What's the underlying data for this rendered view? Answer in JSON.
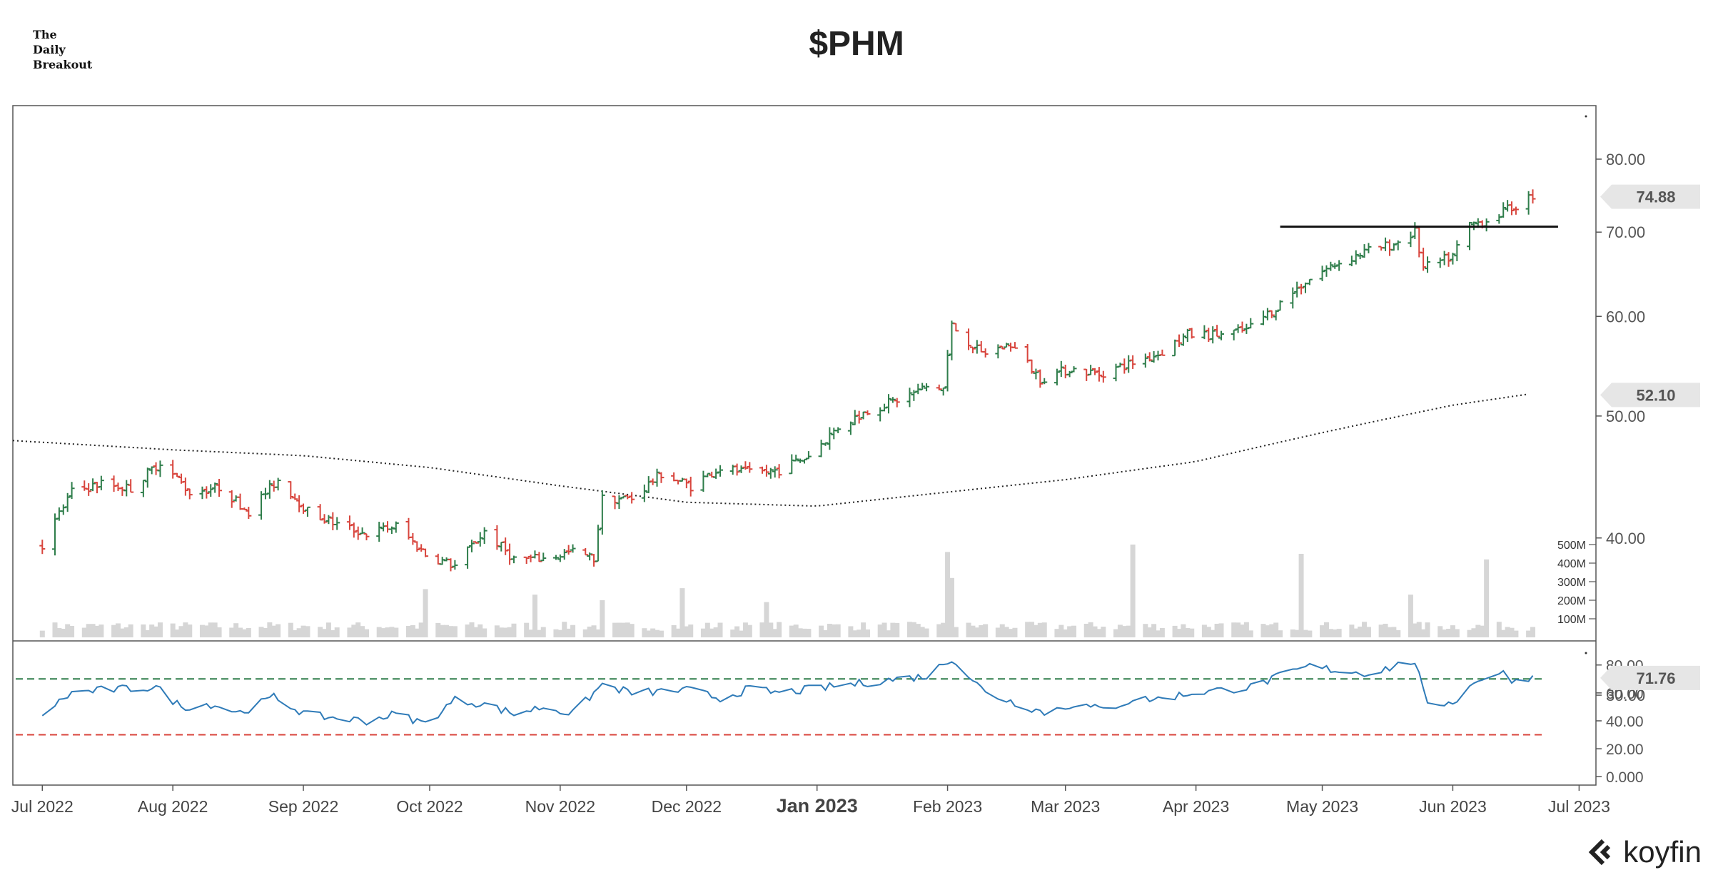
{
  "header": {
    "logo_lines": [
      "The",
      "Daily",
      "Breakout"
    ],
    "title": "$PHM"
  },
  "brand": {
    "name": "koyfin"
  },
  "colors": {
    "up": "#2e7d4a",
    "down": "#d8443c",
    "volume": "#d6d6d6",
    "rsi": "#2f7bb8",
    "rsi_overbought": "#2e7d4a",
    "rsi_oversold": "#d8443c",
    "badge": "#e6e6e6"
  },
  "chart_data": [
    {
      "type": "candlestick",
      "title": "$PHM",
      "x_range": [
        "2022-06-24",
        "2023-07-05"
      ],
      "x_tick_labels": [
        "Jul 2022",
        "Aug 2022",
        "Sep 2022",
        "Oct 2022",
        "Nov 2022",
        "Dec 2022",
        "Jan 2023",
        "Feb 2023",
        "Mar 2023",
        "Apr 2023",
        "May 2023",
        "Jun 2023",
        "Jul 2023"
      ],
      "x_tick_dates": [
        "2022-07-01",
        "2022-08-01",
        "2022-09-01",
        "2022-10-01",
        "2022-11-01",
        "2022-12-01",
        "2023-01-01",
        "2023-02-01",
        "2023-03-01",
        "2023-04-01",
        "2023-05-01",
        "2023-06-01",
        "2023-07-01"
      ],
      "y_scale": "log",
      "y_range": [
        29,
        88
      ],
      "y_tick_labels": [
        "30.00",
        "40.00",
        "50.00",
        "60.00",
        "70.00",
        "80.00"
      ],
      "y_tick_values": [
        30,
        40,
        50,
        60,
        70,
        80
      ],
      "last_price": "74.88",
      "moving_average_label": "52.10",
      "close_keypoints": [
        [
          "2022-07-01",
          39.5
        ],
        [
          "2022-07-08",
          43.5
        ],
        [
          "2022-07-15",
          44.2
        ],
        [
          "2022-07-22",
          43.8
        ],
        [
          "2022-07-29",
          46.0
        ],
        [
          "2022-08-05",
          43.5
        ],
        [
          "2022-08-12",
          43.9
        ],
        [
          "2022-08-19",
          42.0
        ],
        [
          "2022-08-26",
          44.5
        ],
        [
          "2022-09-02",
          42.0
        ],
        [
          "2022-09-09",
          41.0
        ],
        [
          "2022-09-16",
          40.3
        ],
        [
          "2022-09-23",
          40.9
        ],
        [
          "2022-09-30",
          38.8
        ],
        [
          "2022-10-07",
          38.0
        ],
        [
          "2022-10-14",
          40.5
        ],
        [
          "2022-10-21",
          38.5
        ],
        [
          "2022-10-28",
          38.5
        ],
        [
          "2022-11-04",
          39.0
        ],
        [
          "2022-11-09",
          38.5
        ],
        [
          "2022-11-11",
          43.0
        ],
        [
          "2022-11-18",
          43.0
        ],
        [
          "2022-11-25",
          45.0
        ],
        [
          "2022-12-02",
          44.0
        ],
        [
          "2022-12-09",
          45.5
        ],
        [
          "2022-12-16",
          45.0
        ],
        [
          "2022-12-23",
          45.3
        ],
        [
          "2022-12-30",
          46.5
        ],
        [
          "2023-01-06",
          49.0
        ],
        [
          "2023-01-13",
          50.5
        ],
        [
          "2023-01-20",
          51.5
        ],
        [
          "2023-01-27",
          52.7
        ],
        [
          "2023-01-31",
          52.6
        ],
        [
          "2023-02-02",
          59.0
        ],
        [
          "2023-02-09",
          56.0
        ],
        [
          "2023-02-16",
          57.0
        ],
        [
          "2023-02-23",
          53.5
        ],
        [
          "2023-03-02",
          54.5
        ],
        [
          "2023-03-09",
          54.0
        ],
        [
          "2023-03-16",
          55.0
        ],
        [
          "2023-03-23",
          56.0
        ],
        [
          "2023-03-30",
          58.0
        ],
        [
          "2023-04-06",
          58.0
        ],
        [
          "2023-04-13",
          58.5
        ],
        [
          "2023-04-20",
          61.0
        ],
        [
          "2023-04-27",
          64.0
        ],
        [
          "2023-05-04",
          66.0
        ],
        [
          "2023-05-11",
          67.5
        ],
        [
          "2023-05-18",
          68.5
        ],
        [
          "2023-05-23",
          70.0
        ],
        [
          "2023-05-25",
          65.5
        ],
        [
          "2023-06-01",
          67.0
        ],
        [
          "2023-06-05",
          71.0
        ],
        [
          "2023-06-09",
          71.5
        ],
        [
          "2023-06-16",
          73.5
        ],
        [
          "2023-06-20",
          74.88
        ]
      ],
      "resistance_line": {
        "value": 70.7,
        "from": "2023-04-21",
        "to": "2023-06-26"
      },
      "moving_average": [
        [
          "2022-06-24",
          47.8
        ],
        [
          "2022-08-01",
          47.0
        ],
        [
          "2022-09-01",
          46.5
        ],
        [
          "2022-10-01",
          45.5
        ],
        [
          "2022-11-01",
          44.0
        ],
        [
          "2022-12-01",
          42.7
        ],
        [
          "2023-01-01",
          42.4
        ],
        [
          "2023-02-01",
          43.5
        ],
        [
          "2023-03-01",
          44.5
        ],
        [
          "2023-04-01",
          46.0
        ],
        [
          "2023-05-01",
          48.5
        ],
        [
          "2023-06-01",
          51.0
        ],
        [
          "2023-06-20",
          52.1
        ]
      ]
    },
    {
      "type": "bar",
      "title": "Volume",
      "y_tick_labels": [
        "100M",
        "200M",
        "300M",
        "400M",
        "500M"
      ],
      "y_tick_values": [
        100,
        200,
        300,
        400,
        500
      ],
      "y_unit": "M",
      "spikes": [
        [
          "2022-09-30",
          260
        ],
        [
          "2022-10-26",
          230
        ],
        [
          "2022-11-11",
          200
        ],
        [
          "2022-11-30",
          265
        ],
        [
          "2022-12-20",
          190
        ],
        [
          "2023-02-01",
          460
        ],
        [
          "2023-02-02",
          320
        ],
        [
          "2023-03-17",
          500
        ],
        [
          "2023-04-26",
          450
        ],
        [
          "2023-05-22",
          230
        ],
        [
          "2023-06-09",
          420
        ],
        [
          "2023-06-23",
          430
        ]
      ],
      "baseline": 60
    },
    {
      "type": "line",
      "title": "RSI",
      "y_tick_labels": [
        "0.000",
        "20.00",
        "40.00",
        "60.00",
        "80.00"
      ],
      "y_tick_values": [
        0,
        20,
        40,
        60,
        80
      ],
      "y_range": [
        -5,
        86
      ],
      "last_value": "71.76",
      "overbought": 70,
      "oversold": 30,
      "keypoints": [
        [
          "2022-07-01",
          45
        ],
        [
          "2022-07-08",
          60
        ],
        [
          "2022-07-15",
          62
        ],
        [
          "2022-07-28",
          64
        ],
        [
          "2022-08-03",
          50
        ],
        [
          "2022-08-10",
          52
        ],
        [
          "2022-08-17",
          46
        ],
        [
          "2022-08-25",
          57
        ],
        [
          "2022-09-02",
          44
        ],
        [
          "2022-09-09",
          42
        ],
        [
          "2022-09-16",
          40
        ],
        [
          "2022-09-23",
          45
        ],
        [
          "2022-09-30",
          38
        ],
        [
          "2022-10-07",
          55
        ],
        [
          "2022-10-14",
          52
        ],
        [
          "2022-10-21",
          45
        ],
        [
          "2022-10-28",
          50
        ],
        [
          "2022-11-04",
          45
        ],
        [
          "2022-11-11",
          66
        ],
        [
          "2022-11-18",
          60
        ],
        [
          "2022-12-02",
          62
        ],
        [
          "2022-12-09",
          56
        ],
        [
          "2022-12-16",
          63
        ],
        [
          "2022-12-23",
          60
        ],
        [
          "2023-01-06",
          65
        ],
        [
          "2023-01-20",
          70
        ],
        [
          "2023-01-27",
          72
        ],
        [
          "2023-02-02",
          85
        ],
        [
          "2023-02-10",
          60
        ],
        [
          "2023-02-24",
          46
        ],
        [
          "2023-03-03",
          52
        ],
        [
          "2023-03-10",
          48
        ],
        [
          "2023-03-17",
          55
        ],
        [
          "2023-03-24",
          56
        ],
        [
          "2023-03-31",
          60
        ],
        [
          "2023-04-07",
          62
        ],
        [
          "2023-04-14",
          64
        ],
        [
          "2023-04-21",
          72
        ],
        [
          "2023-04-28",
          79
        ],
        [
          "2023-05-05",
          76
        ],
        [
          "2023-05-12",
          74
        ],
        [
          "2023-05-23",
          83
        ],
        [
          "2023-05-26",
          50
        ],
        [
          "2023-06-02",
          55
        ],
        [
          "2023-06-07",
          70
        ],
        [
          "2023-06-13",
          74
        ],
        [
          "2023-06-16",
          68
        ],
        [
          "2023-06-20",
          71.76
        ]
      ]
    }
  ]
}
